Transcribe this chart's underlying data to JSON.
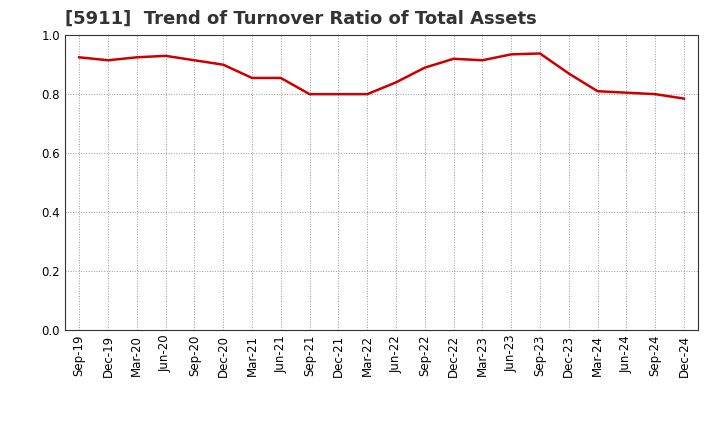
{
  "title": "[5911]  Trend of Turnover Ratio of Total Assets",
  "x_labels": [
    "Sep-19",
    "Dec-19",
    "Mar-20",
    "Jun-20",
    "Sep-20",
    "Dec-20",
    "Mar-21",
    "Jun-21",
    "Sep-21",
    "Dec-21",
    "Mar-22",
    "Jun-22",
    "Sep-22",
    "Dec-22",
    "Mar-23",
    "Jun-23",
    "Sep-23",
    "Dec-23",
    "Mar-24",
    "Jun-24",
    "Sep-24",
    "Dec-24"
  ],
  "y_values": [
    0.925,
    0.915,
    0.925,
    0.93,
    0.915,
    0.9,
    0.855,
    0.855,
    0.8,
    0.8,
    0.8,
    0.84,
    0.89,
    0.92,
    0.915,
    0.935,
    0.938,
    0.87,
    0.81,
    0.805,
    0.8,
    0.785
  ],
  "line_color": "#cc0000",
  "line_width": 1.8,
  "ylim": [
    0.0,
    1.0
  ],
  "yticks": [
    0.0,
    0.2,
    0.4,
    0.6,
    0.8,
    1.0
  ],
  "grid_color": "#999999",
  "background_color": "#ffffff",
  "title_fontsize": 13,
  "tick_fontsize": 8.5,
  "title_color": "#333333"
}
